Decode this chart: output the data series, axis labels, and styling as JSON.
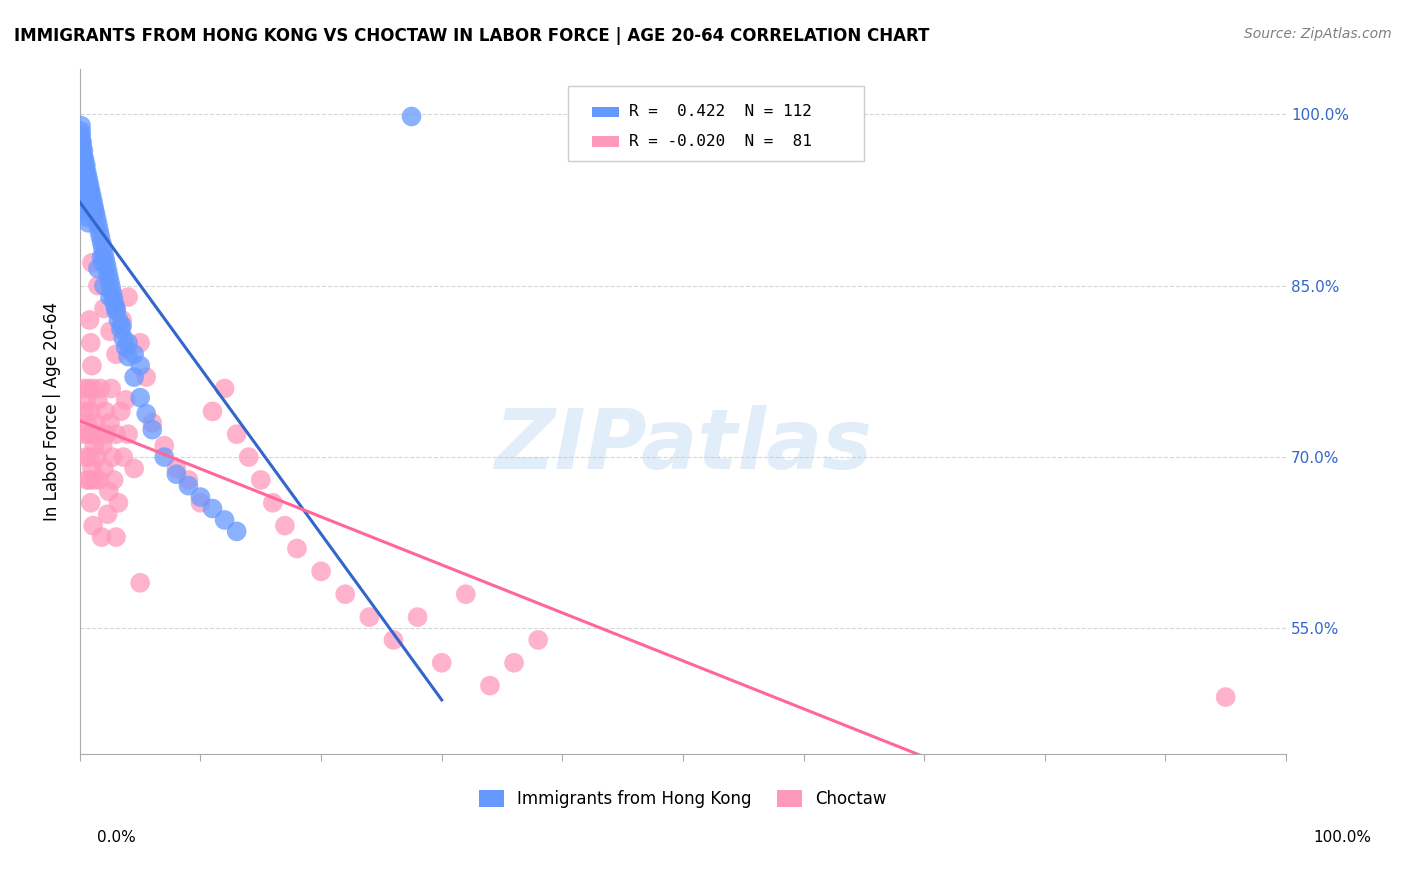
{
  "title": "IMMIGRANTS FROM HONG KONG VS CHOCTAW IN LABOR FORCE | AGE 20-64 CORRELATION CHART",
  "source": "Source: ZipAtlas.com",
  "ylabel": "In Labor Force | Age 20-64",
  "y_tick_labels": [
    "55.0%",
    "70.0%",
    "85.0%",
    "100.0%"
  ],
  "y_tick_values": [
    0.55,
    0.7,
    0.85,
    1.0
  ],
  "x_range": [
    0.0,
    1.0
  ],
  "y_range": [
    0.44,
    1.04
  ],
  "watermark": "ZIPatlas",
  "legend": {
    "hk_label": "Immigrants from Hong Kong",
    "choctaw_label": "Choctaw",
    "hk_r": "0.422",
    "hk_n": "112",
    "choctaw_r": "-0.020",
    "choctaw_n": "81"
  },
  "hk_color": "#6699FF",
  "choctaw_color": "#FF99BB",
  "hk_line_color": "#3366CC",
  "choctaw_line_color": "#FF6699",
  "background": "#FFFFFF",
  "grid_color": "#CCCCCC",
  "hk_x": [
    0.001,
    0.001,
    0.001,
    0.001,
    0.001,
    0.001,
    0.001,
    0.001,
    0.001,
    0.001,
    0.001,
    0.002,
    0.002,
    0.002,
    0.002,
    0.002,
    0.002,
    0.002,
    0.002,
    0.002,
    0.002,
    0.003,
    0.003,
    0.003,
    0.003,
    0.003,
    0.003,
    0.003,
    0.003,
    0.003,
    0.004,
    0.004,
    0.004,
    0.004,
    0.004,
    0.004,
    0.004,
    0.005,
    0.005,
    0.005,
    0.005,
    0.005,
    0.006,
    0.006,
    0.006,
    0.006,
    0.007,
    0.007,
    0.007,
    0.008,
    0.008,
    0.008,
    0.009,
    0.009,
    0.01,
    0.01,
    0.011,
    0.011,
    0.012,
    0.012,
    0.013,
    0.014,
    0.015,
    0.016,
    0.017,
    0.018,
    0.019,
    0.02,
    0.021,
    0.022,
    0.023,
    0.024,
    0.025,
    0.026,
    0.027,
    0.028,
    0.029,
    0.03,
    0.032,
    0.034,
    0.036,
    0.038,
    0.04,
    0.045,
    0.05,
    0.055,
    0.06,
    0.07,
    0.08,
    0.09,
    0.1,
    0.11,
    0.12,
    0.13,
    0.015,
    0.02,
    0.025,
    0.03,
    0.035,
    0.04,
    0.045,
    0.05,
    0.018,
    0.019,
    0.003,
    0.004,
    0.005,
    0.006,
    0.007,
    0.002,
    0.275,
    0.001
  ],
  "hk_y": [
    0.985,
    0.982,
    0.978,
    0.975,
    0.972,
    0.97,
    0.968,
    0.965,
    0.963,
    0.96,
    0.958,
    0.975,
    0.97,
    0.965,
    0.96,
    0.955,
    0.95,
    0.945,
    0.94,
    0.935,
    0.93,
    0.968,
    0.963,
    0.958,
    0.953,
    0.948,
    0.943,
    0.938,
    0.933,
    0.928,
    0.96,
    0.955,
    0.95,
    0.945,
    0.94,
    0.935,
    0.93,
    0.955,
    0.95,
    0.945,
    0.94,
    0.935,
    0.948,
    0.943,
    0.938,
    0.933,
    0.943,
    0.938,
    0.933,
    0.938,
    0.933,
    0.928,
    0.933,
    0.928,
    0.928,
    0.923,
    0.923,
    0.918,
    0.918,
    0.913,
    0.913,
    0.908,
    0.903,
    0.898,
    0.893,
    0.888,
    0.883,
    0.878,
    0.873,
    0.868,
    0.863,
    0.858,
    0.853,
    0.848,
    0.843,
    0.838,
    0.833,
    0.828,
    0.82,
    0.812,
    0.804,
    0.796,
    0.788,
    0.77,
    0.752,
    0.738,
    0.724,
    0.7,
    0.685,
    0.675,
    0.665,
    0.655,
    0.645,
    0.635,
    0.865,
    0.85,
    0.84,
    0.83,
    0.815,
    0.8,
    0.79,
    0.78,
    0.875,
    0.87,
    0.925,
    0.92,
    0.915,
    0.91,
    0.905,
    0.93,
    0.998,
    0.99
  ],
  "choctaw_x": [
    0.003,
    0.004,
    0.004,
    0.005,
    0.005,
    0.006,
    0.006,
    0.007,
    0.007,
    0.008,
    0.008,
    0.009,
    0.009,
    0.01,
    0.01,
    0.011,
    0.011,
    0.012,
    0.012,
    0.013,
    0.014,
    0.015,
    0.015,
    0.016,
    0.017,
    0.018,
    0.019,
    0.02,
    0.021,
    0.022,
    0.023,
    0.024,
    0.025,
    0.026,
    0.027,
    0.028,
    0.03,
    0.032,
    0.034,
    0.036,
    0.038,
    0.04,
    0.045,
    0.05,
    0.055,
    0.06,
    0.07,
    0.08,
    0.09,
    0.1,
    0.11,
    0.12,
    0.13,
    0.14,
    0.15,
    0.16,
    0.17,
    0.18,
    0.2,
    0.22,
    0.24,
    0.26,
    0.28,
    0.3,
    0.32,
    0.34,
    0.36,
    0.38,
    0.01,
    0.015,
    0.02,
    0.025,
    0.03,
    0.035,
    0.04,
    0.05,
    0.008,
    0.009,
    0.01,
    0.03,
    0.95
  ],
  "choctaw_y": [
    0.76,
    0.74,
    0.72,
    0.75,
    0.7,
    0.73,
    0.68,
    0.72,
    0.76,
    0.7,
    0.68,
    0.74,
    0.66,
    0.72,
    0.69,
    0.76,
    0.64,
    0.71,
    0.68,
    0.73,
    0.7,
    0.75,
    0.72,
    0.68,
    0.76,
    0.63,
    0.71,
    0.69,
    0.74,
    0.72,
    0.65,
    0.67,
    0.73,
    0.76,
    0.7,
    0.68,
    0.72,
    0.66,
    0.74,
    0.7,
    0.75,
    0.72,
    0.69,
    0.8,
    0.77,
    0.73,
    0.71,
    0.69,
    0.68,
    0.66,
    0.74,
    0.76,
    0.72,
    0.7,
    0.68,
    0.66,
    0.64,
    0.62,
    0.6,
    0.58,
    0.56,
    0.54,
    0.56,
    0.52,
    0.58,
    0.5,
    0.52,
    0.54,
    0.87,
    0.85,
    0.83,
    0.81,
    0.79,
    0.82,
    0.84,
    0.59,
    0.82,
    0.8,
    0.78,
    0.63,
    0.49
  ]
}
